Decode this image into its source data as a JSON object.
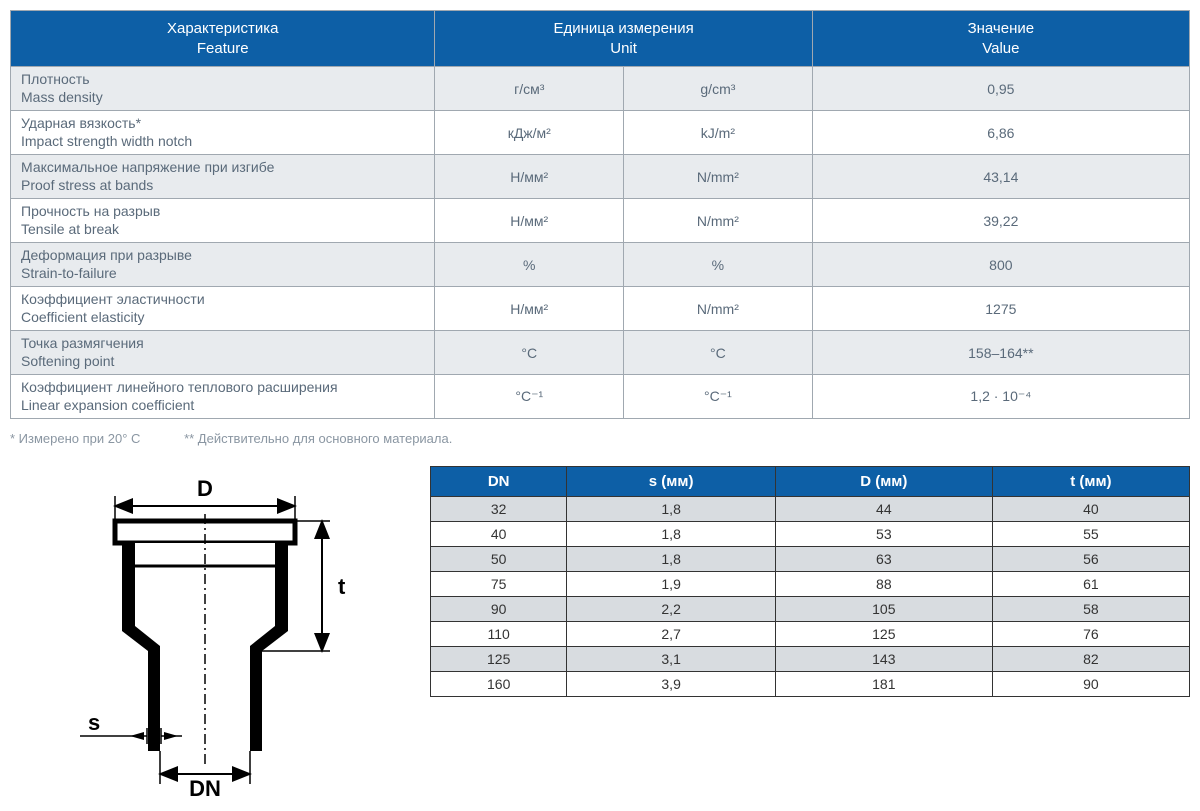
{
  "spec_table": {
    "headers": [
      {
        "ru": "Характеристика",
        "en": "Feature"
      },
      {
        "ru": "Единица измерения",
        "en": "Unit"
      },
      {
        "ru": "Значение",
        "en": "Value"
      }
    ],
    "rows": [
      {
        "feat_ru": "Плотность",
        "feat_en": "Mass density",
        "unit_ru": "г/см³",
        "unit_en": "g/cm³",
        "value": "0,95"
      },
      {
        "feat_ru": "Ударная вязкость*",
        "feat_en": "Impact strength width notch",
        "unit_ru": "кДж/м²",
        "unit_en": "kJ/m²",
        "value": "6,86"
      },
      {
        "feat_ru": "Максимальное напряжение при изгибе",
        "feat_en": "Proof stress at bands",
        "unit_ru": "Н/мм²",
        "unit_en": "N/mm²",
        "value": "43,14"
      },
      {
        "feat_ru": "Прочность на разрыв",
        "feat_en": "Tensile at break",
        "unit_ru": "Н/мм²",
        "unit_en": "N/mm²",
        "value": "39,22"
      },
      {
        "feat_ru": "Деформация при разрыве",
        "feat_en": "Strain-to-failure",
        "unit_ru": "%",
        "unit_en": "%",
        "value": "800"
      },
      {
        "feat_ru": "Коэффициент эластичности",
        "feat_en": "Coefficient elasticity",
        "unit_ru": "Н/мм²",
        "unit_en": "N/mm²",
        "value": "1275"
      },
      {
        "feat_ru": "Точка размягчения",
        "feat_en": "Softening point",
        "unit_ru": "°C",
        "unit_en": "°C",
        "value": "158–164**"
      },
      {
        "feat_ru": "Коэффициент линейного теплового расширения",
        "feat_en": "Linear expansion coefficient",
        "unit_ru": "°C⁻¹",
        "unit_en": "°C⁻¹",
        "value": "1,2 · 10⁻⁴"
      }
    ],
    "col_widths": [
      "36%",
      "16%",
      "16%",
      "32%"
    ],
    "header_bg": "#0d5fa6",
    "header_fg": "#ffffff",
    "row_odd_bg": "#e8ebee",
    "row_even_bg": "#ffffff",
    "border_color": "#a0a8b0",
    "text_color": "#5a6a7a"
  },
  "footnotes": {
    "note1": "* Измерено при 20° С",
    "note2": "** Действительно для основного материала.",
    "color": "#8a96a2"
  },
  "diagram": {
    "labels": {
      "D": "D",
      "t": "t",
      "s": "s",
      "DN": "DN"
    },
    "stroke": "#000000",
    "fill": "#ffffff",
    "centerline_dash": "6 5"
  },
  "dim_table": {
    "headers": [
      "DN",
      "s (мм)",
      "D (мм)",
      "t (мм)"
    ],
    "rows": [
      [
        "32",
        "1,8",
        "44",
        "40"
      ],
      [
        "40",
        "1,8",
        "53",
        "55"
      ],
      [
        "50",
        "1,8",
        "63",
        "56"
      ],
      [
        "75",
        "1,9",
        "88",
        "61"
      ],
      [
        "90",
        "2,2",
        "105",
        "58"
      ],
      [
        "110",
        "2,7",
        "125",
        "76"
      ],
      [
        "125",
        "3,1",
        "143",
        "82"
      ],
      [
        "160",
        "3,9",
        "181",
        "90"
      ]
    ],
    "header_bg": "#0d5fa6",
    "header_fg": "#ffffff",
    "row_odd_bg": "#d8dce0",
    "row_even_bg": "#ffffff",
    "border_color": "#333333"
  }
}
